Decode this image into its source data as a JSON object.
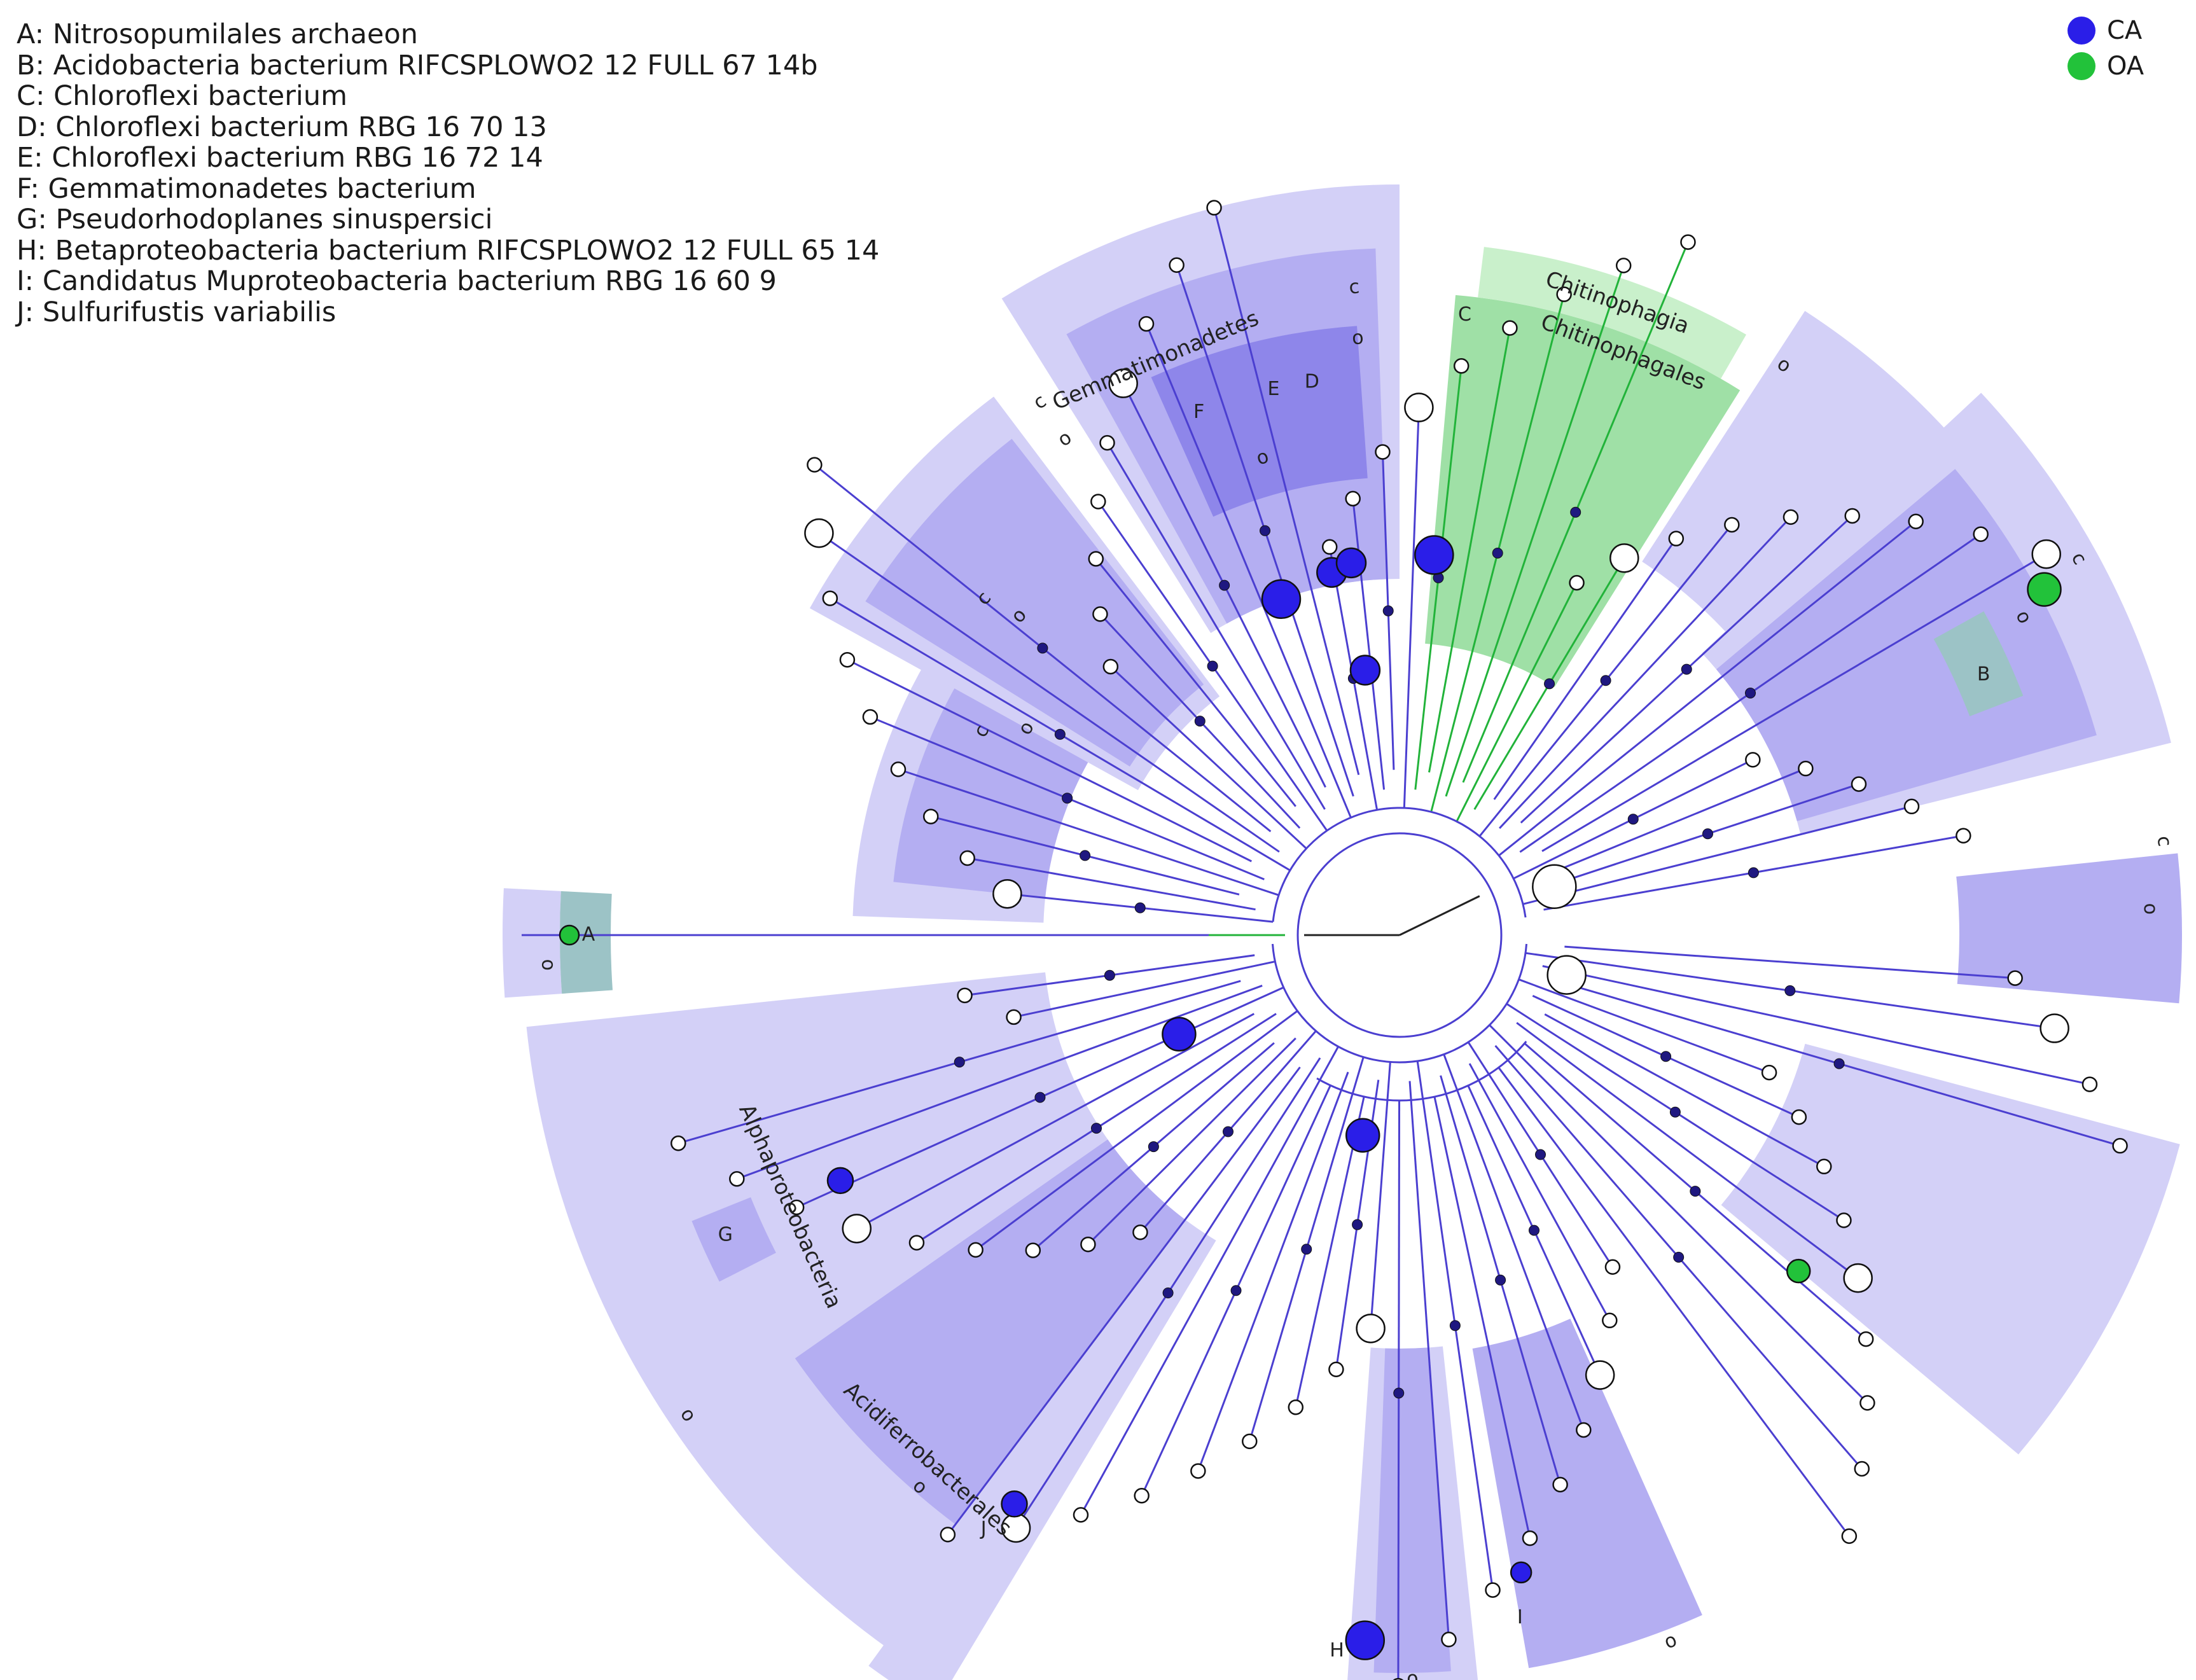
{
  "key": [
    "A: Nitrosopumilales archaeon",
    "B: Acidobacteria bacterium RIFCSPLOWO2 12 FULL 67 14b",
    "C: Chloroflexi bacterium",
    "D: Chloroflexi bacterium RBG 16 70 13",
    "E: Chloroflexi bacterium RBG 16 72 14",
    "F: Gemmatimonadetes bacterium",
    "G: Pseudorhodoplanes sinuspersici",
    "H: Betaproteobacteria bacterium RIFCSPLOWO2 12 FULL 65 14",
    "I: Candidatus Muproteobacteria bacterium RBG 16 60 9",
    "J: Sulfurifustis variabilis"
  ],
  "legend": [
    {
      "label": "CA",
      "color": "#2a1ee8"
    },
    {
      "label": "OA",
      "color": "#22c23a"
    }
  ],
  "colors": {
    "branch": "#4b3fd0",
    "oa_branch": "#22b33a",
    "root_branch": "#222222",
    "ca_node": "#2a1ee8",
    "oa_node": "#22c23a",
    "ns_node": "#ffffff",
    "clade_light": "#d3d0f7",
    "clade_mid": "#b4aef2",
    "clade_dark": "#8e86ea",
    "clade_green_light": "#c9f0cb",
    "clade_green": "#9fe0a6",
    "clade_teal": "#9cc3c6"
  },
  "clade_labels": [
    "Gemmatimonadetes",
    "Chitinophagia",
    "Chitinophagales",
    "Alphaproteobacteria",
    "Acidiferrobacterales"
  ],
  "rank_letters": [
    "c",
    "o",
    "c",
    "o",
    "c",
    "o",
    "c",
    "o",
    "o",
    "o",
    "c",
    "o",
    "c",
    "o",
    "o",
    "o",
    "o",
    "o",
    "o"
  ],
  "marker_letters": [
    "A",
    "B",
    "C",
    "D",
    "E",
    "F",
    "G",
    "H",
    "I",
    "J"
  ]
}
